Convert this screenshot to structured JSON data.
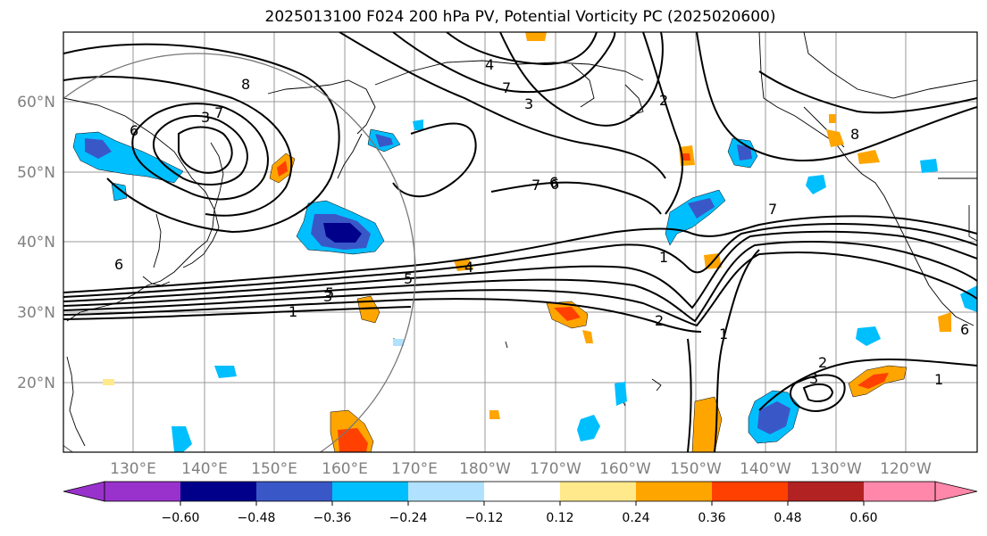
{
  "title": "2025013100 F024 200 hPa PV, Potential Vorticity PC (2025020600)",
  "map": {
    "lat_labels": [
      "60°N",
      "50°N",
      "40°N",
      "30°N",
      "20°N"
    ],
    "lon_labels": [
      "130°E",
      "140°E",
      "150°E",
      "160°E",
      "170°E",
      "180°W",
      "170°W",
      "160°W",
      "150°W",
      "140°W",
      "130°W",
      "120°W"
    ],
    "contour_labels": [
      "8",
      "6",
      "3",
      "7",
      "6",
      "5",
      "4",
      "7",
      "3",
      "2",
      "6",
      "7",
      "5",
      "3",
      "1",
      "4",
      "7",
      "6",
      "1",
      "2",
      "1",
      "2",
      "3",
      "1",
      "8",
      "6"
    ]
  },
  "colorbar": {
    "tick_labels": [
      "−0.60",
      "−0.48",
      "−0.36",
      "−0.24",
      "−0.12",
      "0.12",
      "0.24",
      "0.36",
      "0.48",
      "0.60"
    ],
    "colors": [
      "#9932cc",
      "#00008b",
      "#3a57c8",
      "#00bfff",
      "#b0e2ff",
      "#ffffff",
      "#ffe98a",
      "#ffa500",
      "#ff4000",
      "#b22222",
      "#ff88aa"
    ]
  },
  "colors": {
    "neg_dark": "#00008b",
    "neg_mid": "#3a57c8",
    "neg_light": "#00bfff",
    "neg_pale": "#b0e2ff",
    "pos_pale": "#ffe98a",
    "pos_mid": "#ffa500",
    "pos_strong": "#ff4000"
  }
}
